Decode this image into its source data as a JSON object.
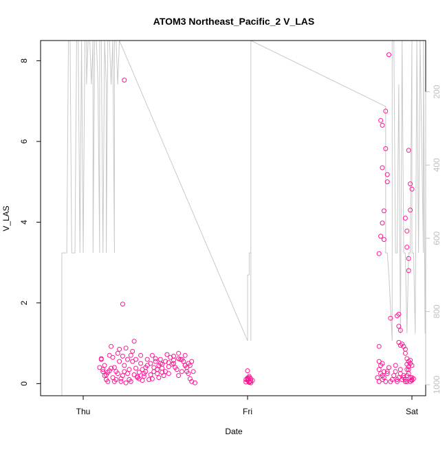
{
  "chart_data": {
    "type": "scatter",
    "title": "ATOM3 Northeast_Pacific_2 V_LAS",
    "xlabel": "Date",
    "ylabel": "V_LAS",
    "x_ticks": [
      "Thu",
      "Fri",
      "Sat"
    ],
    "y_ticks": [
      "0",
      "2",
      "4",
      "6",
      "8"
    ],
    "y2_ticks": [
      "200",
      "400",
      "600",
      "800",
      "1000"
    ],
    "ylim": [
      -0.3,
      8.5
    ],
    "y2lim": [
      1030,
      60
    ],
    "y2_reversed": true,
    "grid": false,
    "colors": {
      "points": "#ff1493",
      "depth_line": "#c8c8c8",
      "axis": "#000000",
      "right_axis": "#c0c0c0"
    },
    "series": [
      {
        "kind": "points",
        "x": [
          0.11,
          0.12,
          0.1,
          0.11,
          0.13,
          0.12,
          0.14,
          0.15,
          0.13,
          0.16,
          0.15,
          0.17,
          0.14,
          0.16,
          0.18,
          0.17,
          0.19,
          0.2,
          0.18,
          0.21,
          0.2,
          0.22,
          0.19,
          0.23,
          0.21,
          0.24,
          0.22,
          0.25,
          0.23,
          0.24,
          0.26,
          0.25,
          0.27,
          0.26,
          0.28,
          0.27,
          0.29,
          0.28,
          0.3,
          0.29,
          0.31,
          0.3,
          0.32,
          0.31,
          0.33,
          0.32,
          0.34,
          0.33,
          0.35,
          0.34,
          0.36,
          0.35,
          0.37,
          0.36,
          0.38,
          0.37,
          0.39,
          0.38,
          0.4,
          0.39,
          0.41,
          0.42,
          0.41,
          0.43,
          0.42,
          0.44,
          0.43,
          0.45,
          0.44,
          0.46,
          0.45,
          0.47,
          0.46,
          0.48,
          0.47,
          0.49,
          0.5,
          0.48,
          0.51,
          0.52,
          0.5,
          0.53,
          0.54,
          0.55,
          0.52,
          0.56,
          0.57,
          0.58,
          0.55,
          0.59,
          0.6,
          0.58,
          0.62,
          0.61,
          0.63,
          0.6,
          0.62,
          0.64,
          0.63,
          0.65,
          0.64,
          0.66,
          0.65,
          0.67,
          0.66,
          0.68,
          0.25,
          0.24,
          0.48,
          0.52,
          0.58,
          0.62,
          0.55,
          0.45
        ],
        "y": [
          0.6,
          0.3,
          0.4,
          0.62,
          0.2,
          0.35,
          0.1,
          0.28,
          0.45,
          0.32,
          0.05,
          0.38,
          0.22,
          0.7,
          0.15,
          0.92,
          0.05,
          0.3,
          0.65,
          0.25,
          0.1,
          0.85,
          0.4,
          0.05,
          0.75,
          0.2,
          0.55,
          0.3,
          0.12,
          0.68,
          0.02,
          0.45,
          0.25,
          0.88,
          0.35,
          0.6,
          0.7,
          0.1,
          0.55,
          0.05,
          0.22,
          0.8,
          0.38,
          1.05,
          0.18,
          0.6,
          0.28,
          0.15,
          0.5,
          0.12,
          0.35,
          0.7,
          0.25,
          0.08,
          0.4,
          0.18,
          0.6,
          0.3,
          0.1,
          0.45,
          0.22,
          0.12,
          0.5,
          0.3,
          0.7,
          0.55,
          0.4,
          0.25,
          0.62,
          0.15,
          0.35,
          0.5,
          0.45,
          0.28,
          0.6,
          0.2,
          0.55,
          0.38,
          0.72,
          0.42,
          0.3,
          0.65,
          0.48,
          0.58,
          0.25,
          0.4,
          0.35,
          0.75,
          0.5,
          0.6,
          0.3,
          0.2,
          0.45,
          0.55,
          0.4,
          0.6,
          0.7,
          0.5,
          0.3,
          0.45,
          0.25,
          0.55,
          0.12,
          0.3,
          0.05,
          0.02,
          7.52,
          1.97,
          0.48,
          0.52,
          0.62,
          0.45,
          0.68,
          0.35
        ],
        "x_encoding": "days after Thu 00:00"
      },
      {
        "kind": "points",
        "x": [
          1.0,
          1.01,
          1.02,
          0.99,
          1.0,
          1.01,
          1.02,
          1.0,
          1.01,
          0.99,
          1.02,
          1.0,
          1.01,
          1.03,
          1.0
        ],
        "y": [
          0.32,
          0.15,
          0.12,
          0.1,
          0.08,
          0.05,
          0.02,
          0.12,
          0.18,
          0.04,
          0.06,
          0.1,
          0.03,
          0.08,
          0.14
        ]
      },
      {
        "kind": "points",
        "x": [
          1.79,
          1.8,
          1.8,
          1.81,
          1.8,
          1.82,
          1.81,
          1.82,
          1.83,
          1.82,
          1.83,
          1.84,
          1.85,
          1.86,
          1.88,
          1.85,
          1.87,
          1.89,
          1.9,
          1.91,
          1.9,
          1.92,
          1.91,
          1.93,
          1.94,
          1.95,
          1.93,
          1.96,
          1.95,
          1.97,
          1.96,
          1.98,
          1.97,
          1.99,
          1.98,
          2.0,
          1.99,
          2.01,
          2.0,
          2.0
        ],
        "y": [
          0.15,
          0.05,
          0.35,
          0.25,
          0.55,
          0.1,
          0.45,
          0.2,
          0.3,
          0.5,
          0.15,
          0.05,
          0.25,
          0.4,
          0.1,
          0.3,
          0.05,
          0.2,
          0.45,
          0.1,
          0.3,
          0.15,
          0.05,
          0.25,
          0.1,
          0.2,
          0.35,
          0.05,
          0.15,
          0.2,
          0.1,
          0.35,
          0.05,
          0.15,
          0.25,
          0.1,
          0.05,
          0.12,
          0.08,
          0.15
        ]
      },
      {
        "kind": "points",
        "x": [
          1.8,
          1.81,
          1.8,
          1.82,
          1.81,
          1.82,
          1.83,
          1.82,
          1.84,
          1.84,
          1.83,
          1.85,
          1.85,
          1.86,
          1.87,
          1.92,
          1.91,
          1.92,
          1.93,
          1.92,
          1.94,
          1.95,
          1.93,
          1.96,
          1.96,
          1.97,
          1.98,
          1.97,
          1.98,
          1.97,
          1.99,
          1.98,
          2.0,
          1.99
        ],
        "y": [
          3.22,
          6.52,
          0.92,
          6.4,
          3.65,
          5.35,
          4.28,
          3.98,
          6.75,
          5.82,
          3.57,
          5.18,
          5.0,
          8.15,
          1.62,
          1.72,
          1.68,
          1.42,
          1.32,
          1.02,
          0.98,
          0.92,
          0.95,
          0.85,
          0.75,
          0.62,
          0.55,
          0.48,
          0.42,
          0.35,
          4.95,
          5.78,
          4.82,
          4.3
        ]
      },
      {
        "kind": "points",
        "x": [
          1.96,
          1.97,
          1.97,
          1.98,
          1.98,
          1.99,
          1.99,
          2.0
        ],
        "y": [
          4.1,
          3.78,
          3.38,
          3.1,
          2.8,
          0.58,
          0.5,
          0.45
        ]
      },
      {
        "kind": "depth_line",
        "x": [
          -0.13,
          -0.13,
          -0.1,
          -0.09,
          -0.08,
          -0.07,
          -0.05,
          -0.04,
          -0.03,
          -0.02,
          -0.01,
          0.0,
          0.01,
          0.02,
          0.02,
          0.03,
          0.04,
          0.05,
          0.06,
          0.06,
          0.07,
          0.08,
          0.09,
          0.1,
          0.1,
          0.11,
          0.12,
          0.13,
          0.14,
          0.14,
          0.15,
          0.16,
          0.17,
          0.18,
          0.19,
          0.19,
          0.2,
          0.21,
          0.22,
          1.0,
          1.0,
          1.01,
          1.01,
          1.02,
          1.02,
          1.02,
          1.02,
          1.84,
          1.84,
          1.85,
          1.86,
          1.88,
          1.88,
          1.89,
          1.9,
          1.91,
          1.92,
          1.93,
          1.94,
          1.95,
          1.96,
          1.97,
          1.98,
          1.99,
          2.0,
          2.0,
          2.01,
          2.02,
          2.03,
          2.04,
          2.05,
          2.07,
          2.07,
          2.08,
          2.09,
          2.1,
          2.11,
          2.12,
          2.13,
          2.14,
          2.15,
          2.16,
          2.17,
          2.18,
          2.19,
          2.2,
          2.2,
          2.21,
          2.22,
          2.23,
          2.24,
          2.25,
          2.26,
          2.27,
          2.28,
          2.29,
          2.3,
          2.31,
          2.32,
          2.33,
          2.34,
          2.35,
          2.36,
          2.37,
          2.38,
          2.39,
          2.4
        ],
        "y": [
          1030,
          640,
          640,
          60,
          60,
          640,
          640,
          60,
          60,
          640,
          60,
          640,
          60,
          60,
          180,
          60,
          60,
          180,
          60,
          640,
          60,
          60,
          180,
          640,
          60,
          60,
          640,
          60,
          180,
          640,
          60,
          60,
          180,
          60,
          640,
          60,
          60,
          180,
          60,
          880,
          700,
          700,
          640,
          640,
          880,
          700,
          60,
          240,
          640,
          640,
          700,
          880,
          60,
          60,
          640,
          640,
          180,
          860,
          60,
          640,
          640,
          860,
          640,
          640,
          60,
          640,
          640,
          860,
          60,
          640,
          60,
          640,
          60,
          860,
          60,
          60,
          640,
          60,
          640,
          60,
          860,
          60,
          640,
          60,
          60,
          640,
          60,
          640,
          60,
          860,
          60,
          640,
          60,
          60,
          640,
          60,
          60,
          860,
          60,
          640,
          60,
          60,
          640,
          60,
          860,
          640,
          60
        ],
        "x_encoding": "days after Thu 00:00"
      }
    ]
  }
}
